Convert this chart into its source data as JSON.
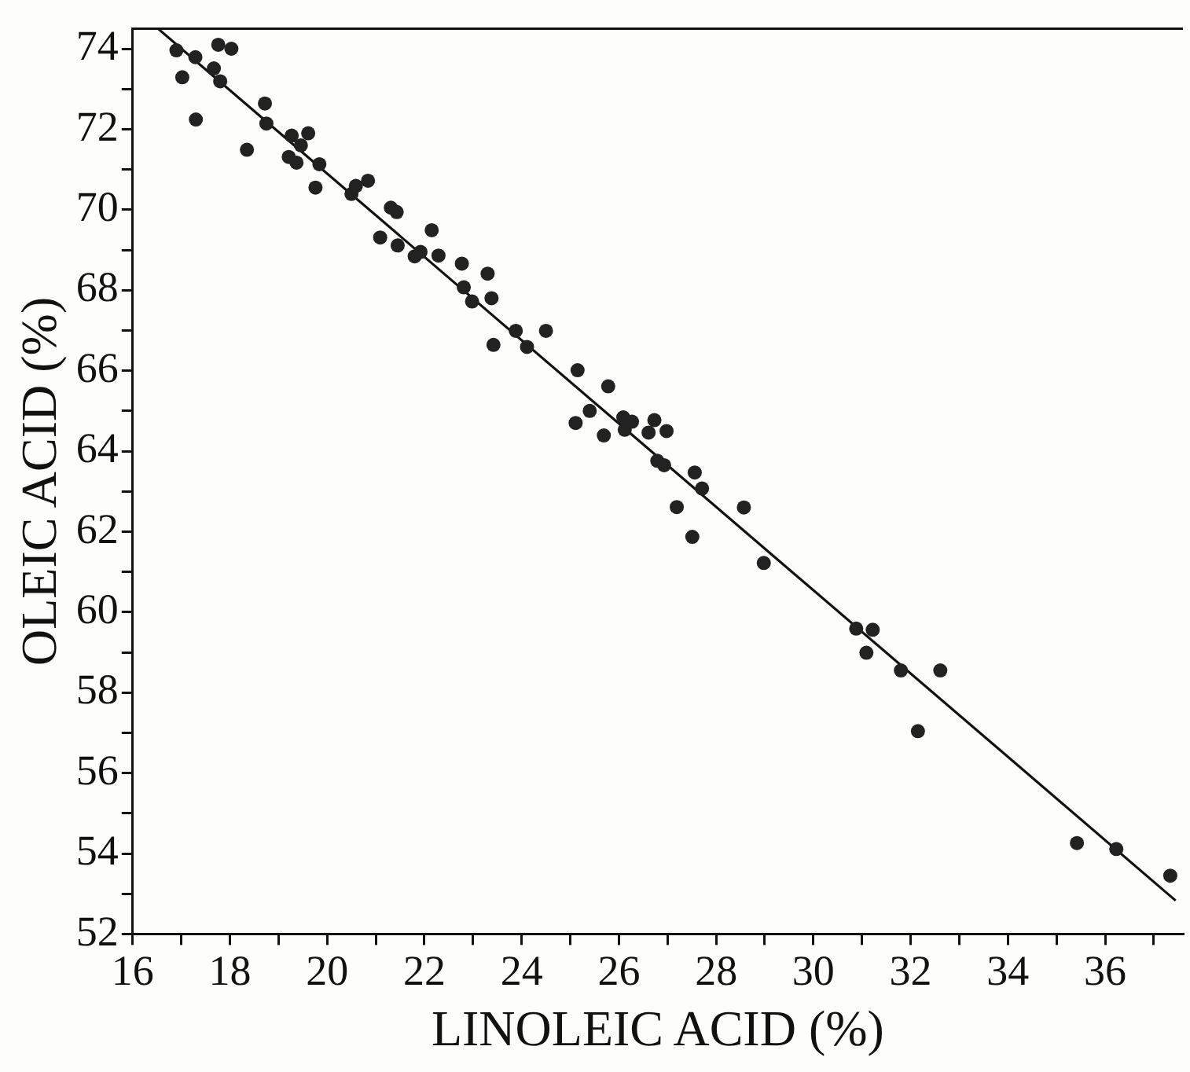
{
  "chart_data": {
    "type": "scatter",
    "xlabel": "LINOLEIC ACID (%)",
    "ylabel": "OLEIC ACID (%)",
    "xlim": [
      16,
      37.6
    ],
    "ylim": [
      52,
      74.5
    ],
    "xticks": [
      16,
      {
        "value": 17,
        "label": null
      },
      18,
      {
        "value": 19,
        "label": null
      },
      20,
      {
        "value": 21,
        "label": null
      },
      22,
      {
        "value": 23,
        "label": null
      },
      24,
      {
        "value": 25,
        "label": null
      },
      26,
      {
        "value": 27,
        "label": null
      },
      28,
      {
        "value": 29,
        "label": null
      },
      30,
      {
        "value": 31,
        "label": null
      },
      32,
      {
        "value": 33,
        "label": null
      },
      34,
      {
        "value": 35,
        "label": null
      },
      36,
      {
        "value": 37,
        "label": null
      }
    ],
    "yticks": [
      52,
      {
        "value": 53,
        "label": null
      },
      54,
      {
        "value": 55,
        "label": null
      },
      56,
      {
        "value": 57,
        "label": null
      },
      58,
      {
        "value": 59,
        "label": null
      },
      60,
      {
        "value": 61,
        "label": null
      },
      62,
      {
        "value": 63,
        "label": null
      },
      64,
      {
        "value": 65,
        "label": null
      },
      66,
      {
        "value": 67,
        "label": null
      },
      68,
      {
        "value": 69,
        "label": null
      },
      70,
      {
        "value": 71,
        "label": null
      },
      72,
      {
        "value": 73,
        "label": null
      },
      74
    ],
    "grid": false,
    "legend": false,
    "marker": "circle",
    "series": [
      {
        "color": "#222222",
        "x": [
          16.9,
          17.02,
          17.29,
          17.3,
          17.67,
          17.8,
          17.76,
          18.03,
          18.35,
          18.72,
          18.75,
          19.27,
          19.21,
          19.37,
          19.61,
          19.46,
          19.76,
          19.84,
          20.5,
          20.59,
          20.84,
          21.09,
          21.31,
          21.43,
          21.45,
          21.8,
          21.92,
          22.15,
          22.29,
          22.77,
          22.81,
          22.98,
          23.3,
          23.38,
          23.42,
          23.88,
          24.11,
          24.5,
          25.15,
          25.78,
          25.11,
          25.4,
          25.69,
          26.09,
          26.27,
          26.12,
          26.73,
          26.61,
          26.98,
          26.79,
          26.93,
          27.56,
          27.71,
          27.19,
          28.57,
          27.51,
          28.98,
          30.88,
          31.22,
          31.09,
          31.8,
          32.61,
          32.15,
          35.42,
          36.23,
          37.34
        ],
        "values": [
          73.96,
          73.29,
          73.79,
          72.24,
          73.51,
          73.19,
          74.1,
          74.0,
          71.49,
          72.64,
          72.14,
          71.84,
          71.31,
          71.17,
          71.9,
          71.6,
          70.55,
          71.13,
          70.39,
          70.59,
          70.72,
          69.31,
          70.05,
          69.94,
          69.11,
          68.84,
          68.95,
          69.49,
          68.86,
          68.66,
          68.07,
          67.72,
          68.41,
          67.8,
          66.64,
          66.99,
          66.59,
          66.99,
          66.01,
          65.61,
          64.7,
          65.0,
          64.39,
          64.84,
          64.73,
          64.53,
          64.77,
          64.46,
          64.5,
          63.76,
          63.65,
          63.47,
          63.07,
          62.61,
          62.6,
          61.87,
          61.22,
          59.59,
          59.56,
          58.99,
          58.55,
          58.55,
          57.04,
          54.26,
          54.11,
          53.45
        ]
      },
      {
        "type": "line",
        "color": "#111111",
        "marker": "none",
        "line_style": "solid",
        "x": [
          16.52,
          37.45
        ],
        "values": [
          74.5,
          52.83
        ]
      }
    ]
  }
}
